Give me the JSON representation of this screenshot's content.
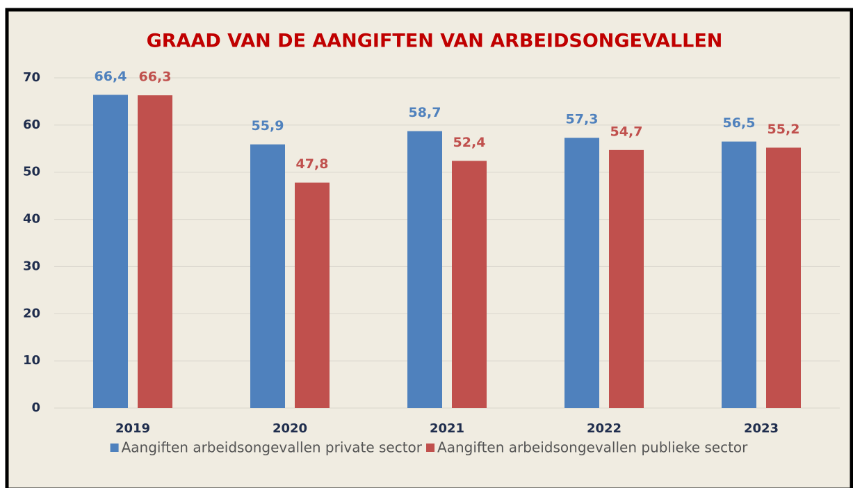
{
  "chart_data": {
    "type": "bar",
    "title": "GRAAD VAN DE AANGIFTEN VAN ARBEIDSONGEVALLEN",
    "categories": [
      "2019",
      "2020",
      "2021",
      "2022",
      "2023"
    ],
    "series": [
      {
        "name": "Aangiften arbeidsongevallen private sector",
        "color": "#4f81bd",
        "values": [
          66.4,
          55.9,
          58.7,
          57.3,
          56.5
        ],
        "value_labels": [
          "66,4",
          "55,9",
          "58,7",
          "57,3",
          "56,5"
        ]
      },
      {
        "name": "Aangiften arbeidsongevallen publieke sector",
        "color": "#c0504d",
        "values": [
          66.3,
          47.8,
          52.4,
          54.7,
          55.2
        ],
        "value_labels": [
          "66,3",
          "47,8",
          "52,4",
          "54,7",
          "55,2"
        ]
      }
    ],
    "ylim": [
      0,
      70
    ],
    "yticks": [
      0,
      10,
      20,
      30,
      40,
      50,
      60,
      70
    ],
    "grid": true,
    "legend": "bottom"
  }
}
